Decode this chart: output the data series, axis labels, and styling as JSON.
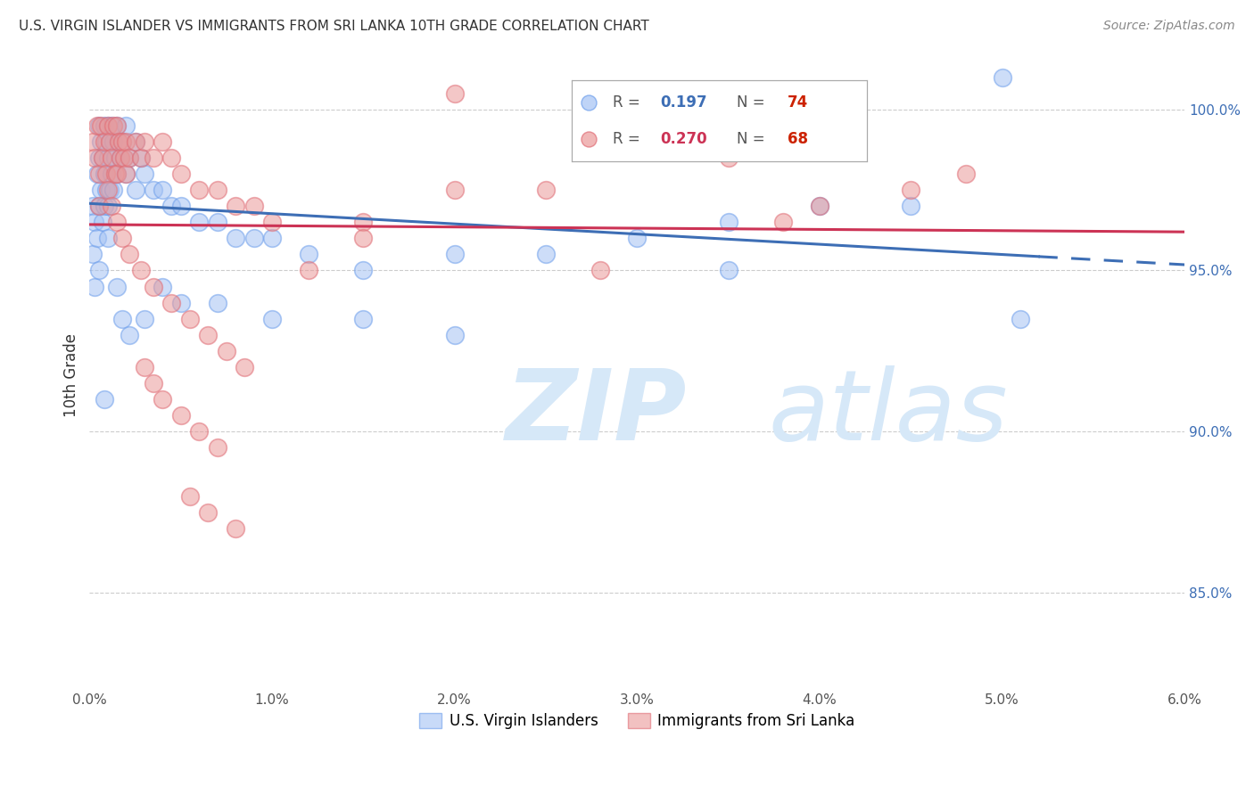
{
  "title": "U.S. VIRGIN ISLANDER VS IMMIGRANTS FROM SRI LANKA 10TH GRADE CORRELATION CHART",
  "source": "Source: ZipAtlas.com",
  "ylabel": "10th Grade",
  "xmin": 0.0,
  "xmax": 6.0,
  "ymin": 82.0,
  "ymax": 101.5,
  "blue_color": "#a4c2f4",
  "pink_color": "#ea9999",
  "blue_edge_color": "#6d9eeb",
  "pink_edge_color": "#e06c75",
  "blue_line_color": "#3d6eb5",
  "pink_line_color": "#cc3355",
  "watermark_zip": "ZIP",
  "watermark_atlas": "atlas",
  "watermark_color": "#d6e8f8",
  "legend_x_label": "U.S. Virgin Islanders",
  "legend_y_label": "Immigrants from Sri Lanka",
  "right_ytick_vals": [
    85.0,
    90.0,
    95.0,
    100.0
  ],
  "right_ytick_labels": [
    "85.0%",
    "90.0%",
    "95.0%",
    "100.0%"
  ],
  "xtick_vals": [
    0.0,
    1.0,
    2.0,
    3.0,
    4.0,
    5.0,
    6.0
  ],
  "xtick_labels": [
    "0.0%",
    "1.0%",
    "2.0%",
    "3.0%",
    "4.0%",
    "5.0%",
    "6.0%"
  ],
  "blue_x": [
    0.02,
    0.02,
    0.03,
    0.03,
    0.04,
    0.04,
    0.05,
    0.05,
    0.05,
    0.05,
    0.06,
    0.06,
    0.07,
    0.07,
    0.08,
    0.08,
    0.08,
    0.09,
    0.09,
    0.1,
    0.1,
    0.1,
    0.1,
    0.11,
    0.11,
    0.12,
    0.12,
    0.13,
    0.13,
    0.14,
    0.15,
    0.15,
    0.16,
    0.17,
    0.18,
    0.19,
    0.2,
    0.2,
    0.22,
    0.25,
    0.25,
    0.28,
    0.3,
    0.35,
    0.4,
    0.45,
    0.5,
    0.6,
    0.7,
    0.8,
    0.9,
    1.0,
    1.2,
    1.5,
    2.0,
    2.5,
    3.0,
    3.5,
    4.0,
    4.5,
    0.15,
    0.18,
    0.22,
    0.3,
    0.4,
    0.5,
    0.7,
    1.0,
    1.5,
    2.0,
    3.5,
    5.0,
    5.1,
    0.08
  ],
  "blue_y": [
    97.0,
    95.5,
    96.5,
    94.5,
    98.0,
    96.0,
    99.5,
    98.5,
    97.0,
    95.0,
    99.0,
    97.5,
    98.5,
    96.5,
    99.5,
    98.0,
    97.0,
    99.0,
    97.5,
    99.5,
    98.5,
    97.0,
    96.0,
    99.0,
    97.5,
    99.5,
    98.0,
    99.0,
    97.5,
    98.5,
    99.5,
    98.0,
    99.0,
    98.5,
    99.0,
    98.5,
    99.5,
    98.0,
    98.5,
    99.0,
    97.5,
    98.5,
    98.0,
    97.5,
    97.5,
    97.0,
    97.0,
    96.5,
    96.5,
    96.0,
    96.0,
    96.0,
    95.5,
    95.0,
    95.5,
    95.5,
    96.0,
    96.5,
    97.0,
    97.0,
    94.5,
    93.5,
    93.0,
    93.5,
    94.5,
    94.0,
    94.0,
    93.5,
    93.5,
    93.0,
    95.0,
    101.0,
    93.5,
    91.0
  ],
  "pink_x": [
    0.02,
    0.03,
    0.04,
    0.05,
    0.05,
    0.06,
    0.07,
    0.08,
    0.09,
    0.1,
    0.1,
    0.11,
    0.12,
    0.13,
    0.14,
    0.15,
    0.15,
    0.16,
    0.17,
    0.18,
    0.19,
    0.2,
    0.2,
    0.22,
    0.25,
    0.28,
    0.3,
    0.35,
    0.4,
    0.45,
    0.5,
    0.6,
    0.7,
    0.8,
    0.9,
    1.0,
    1.5,
    2.0,
    2.5,
    3.5,
    4.5,
    0.12,
    0.15,
    0.18,
    0.22,
    0.28,
    0.35,
    0.45,
    0.55,
    0.65,
    0.75,
    0.85,
    0.3,
    0.35,
    0.4,
    0.5,
    0.6,
    0.7,
    1.5,
    4.0,
    4.8,
    3.8,
    0.55,
    0.65,
    0.8,
    1.2,
    2.0,
    2.8
  ],
  "pink_y": [
    99.0,
    98.5,
    99.5,
    98.0,
    97.0,
    99.5,
    98.5,
    99.0,
    98.0,
    99.5,
    97.5,
    99.0,
    98.5,
    99.5,
    98.0,
    99.5,
    98.0,
    99.0,
    98.5,
    99.0,
    98.5,
    99.0,
    98.0,
    98.5,
    99.0,
    98.5,
    99.0,
    98.5,
    99.0,
    98.5,
    98.0,
    97.5,
    97.5,
    97.0,
    97.0,
    96.5,
    96.5,
    97.5,
    97.5,
    98.5,
    97.5,
    97.0,
    96.5,
    96.0,
    95.5,
    95.0,
    94.5,
    94.0,
    93.5,
    93.0,
    92.5,
    92.0,
    92.0,
    91.5,
    91.0,
    90.5,
    90.0,
    89.5,
    96.0,
    97.0,
    98.0,
    96.5,
    88.0,
    87.5,
    87.0,
    95.0,
    100.5,
    95.0
  ]
}
